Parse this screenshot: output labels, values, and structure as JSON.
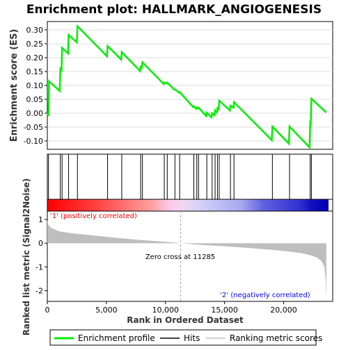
{
  "chart_data": {
    "type": "line",
    "title": "Enrichment plot: HALLMARK_ANGIOGENESIS",
    "colors": {
      "enrichment": "#00ee00",
      "hits": "#000000",
      "metric_fill": "#bebebe",
      "positive_text": "#ff0000",
      "negative_text": "#0000ff",
      "zero_cross_line": "#a0a0a0",
      "heat_red": "#ff0000",
      "heat_blue": "#0000cc"
    },
    "es_panel": {
      "ylabel": "Enrichment score (ES)",
      "ylim": [
        -0.13,
        0.33
      ],
      "xlim": [
        0,
        23800
      ],
      "yticks": [
        "0.30",
        "0.25",
        "0.20",
        "0.15",
        "0.10",
        "0.05",
        "0.00",
        "-0.05",
        "-0.10"
      ],
      "ytick_values": [
        0.3,
        0.25,
        0.2,
        0.15,
        0.1,
        0.05,
        0.0,
        -0.05,
        -0.1
      ],
      "grid": true,
      "hits": [
        100,
        1100,
        1250,
        1800,
        2550,
        5100,
        6300,
        7900,
        8050,
        9900,
        10150,
        10800,
        11200,
        12400,
        12650,
        12800,
        13500,
        13950,
        14200,
        14400,
        14550,
        15500,
        15800,
        19050,
        20500,
        22250,
        22350
      ],
      "es_curve": [
        [
          0,
          0.0
        ],
        [
          100,
          -0.01
        ],
        [
          150,
          0.115
        ],
        [
          1050,
          0.08
        ],
        [
          1100,
          0.16
        ],
        [
          1200,
          0.155
        ],
        [
          1250,
          0.235
        ],
        [
          1750,
          0.215
        ],
        [
          1800,
          0.282
        ],
        [
          2500,
          0.255
        ],
        [
          2550,
          0.313
        ],
        [
          5050,
          0.205
        ],
        [
          5100,
          0.242
        ],
        [
          6250,
          0.193
        ],
        [
          6300,
          0.22
        ],
        [
          7850,
          0.152
        ],
        [
          7900,
          0.168
        ],
        [
          8000,
          0.165
        ],
        [
          8050,
          0.183
        ],
        [
          9850,
          0.105
        ],
        [
          9900,
          0.11
        ],
        [
          10100,
          0.107
        ],
        [
          10150,
          0.11
        ],
        [
          10750,
          0.085
        ],
        [
          10800,
          0.086
        ],
        [
          11150,
          0.074
        ],
        [
          11200,
          0.076
        ],
        [
          12350,
          0.022
        ],
        [
          12400,
          0.025
        ],
        [
          12600,
          0.016
        ],
        [
          12650,
          0.02
        ],
        [
          12750,
          0.017
        ],
        [
          12800,
          0.02
        ],
        [
          13450,
          -0.01
        ],
        [
          13500,
          0.002
        ],
        [
          13900,
          -0.015
        ],
        [
          13950,
          0.0
        ],
        [
          14150,
          -0.007
        ],
        [
          14200,
          0.01
        ],
        [
          14350,
          0.003
        ],
        [
          14400,
          0.018
        ],
        [
          14500,
          0.014
        ],
        [
          14550,
          0.045
        ],
        [
          15450,
          0.01
        ],
        [
          15500,
          0.027
        ],
        [
          15750,
          0.02
        ],
        [
          15800,
          0.04
        ],
        [
          19000,
          -0.097
        ],
        [
          19050,
          -0.048
        ],
        [
          20450,
          -0.11
        ],
        [
          20500,
          -0.048
        ],
        [
          22200,
          -0.123
        ],
        [
          22250,
          -0.035
        ],
        [
          22300,
          -0.038
        ],
        [
          22350,
          0.052
        ],
        [
          23600,
          0.003
        ]
      ]
    },
    "metric_panel": {
      "ylabel": "Ranked list metric (Signal2Noise)",
      "xlabel": "Rank in Ordered Dataset",
      "ylim": [
        -2.45,
        1.35
      ],
      "yticks": [
        "1",
        "0",
        "-1",
        "-2"
      ],
      "ytick_values": [
        1,
        0,
        -1,
        -2
      ],
      "xlim": [
        0,
        23800
      ],
      "xticks": [
        "0",
        "5,000",
        "10,000",
        "15,000",
        "20,000"
      ],
      "xtick_values": [
        0,
        5000,
        10000,
        15000,
        20000
      ],
      "zero_cross_rank": 11285,
      "zero_cross_label": "Zero cross at 11285",
      "positive_label": "'1' (positively correlated)",
      "negative_label": "'2' (negatively correlated)",
      "metric_profile": [
        [
          0,
          1.0
        ],
        [
          60,
          0.8
        ],
        [
          300,
          0.65
        ],
        [
          1000,
          0.5
        ],
        [
          2000,
          0.42
        ],
        [
          4000,
          0.32
        ],
        [
          6000,
          0.22
        ],
        [
          8000,
          0.13
        ],
        [
          10000,
          0.06
        ],
        [
          11285,
          0.0
        ],
        [
          13000,
          -0.07
        ],
        [
          15000,
          -0.13
        ],
        [
          17000,
          -0.2
        ],
        [
          19000,
          -0.28
        ],
        [
          20500,
          -0.35
        ],
        [
          21500,
          -0.42
        ],
        [
          22200,
          -0.5
        ],
        [
          22800,
          -0.6
        ],
        [
          23200,
          -0.75
        ],
        [
          23450,
          -1.0
        ],
        [
          23550,
          -1.5
        ],
        [
          23620,
          -2.25
        ]
      ]
    },
    "legend": {
      "items": [
        {
          "label": "Enrichment profile",
          "style": "green-line"
        },
        {
          "label": "Hits",
          "style": "black-line"
        },
        {
          "label": "Ranking metric scores",
          "style": "gray-line"
        }
      ]
    }
  }
}
